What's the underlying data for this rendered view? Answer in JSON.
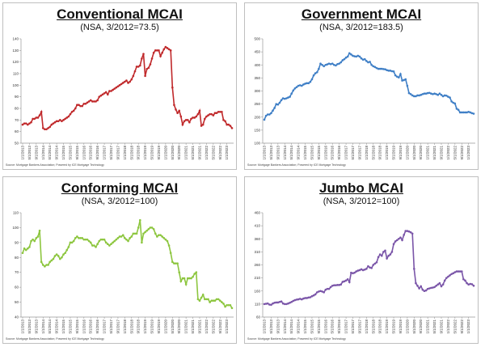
{
  "source": "Source: Mortgage Bankers Association; Powered by ICE Mortgage Technology",
  "x_tick_labels": [
    "1/1/2013",
    "5/1/2013",
    "9/1/2013",
    "1/1/2014",
    "5/1/2014",
    "9/1/2014",
    "1/1/2015",
    "5/1/2015",
    "9/1/2015",
    "1/1/2016",
    "5/1/2016",
    "9/1/2016",
    "1/1/2017",
    "5/1/2017",
    "9/1/2017",
    "1/1/2018",
    "5/1/2018",
    "9/1/2018",
    "1/1/2019",
    "5/1/2019",
    "9/1/2019",
    "1/1/2020",
    "5/1/2020",
    "9/1/2020",
    "1/1/2021",
    "5/1/2021",
    "9/1/2021",
    "1/1/2022",
    "5/1/2022",
    "9/1/2022",
    "1/1/2023"
  ],
  "chart_data": [
    {
      "type": "line",
      "title": "Conventional MCAI",
      "subtitle": "(NSA, 3/2012=73.5)",
      "color": "#c0292b",
      "x_start": "2013-01",
      "x_step": "monthly",
      "ylim": [
        50,
        140
      ],
      "yticks": [
        50,
        60,
        70,
        80,
        90,
        100,
        110,
        120,
        130,
        140
      ],
      "grid": false,
      "legend": "none",
      "values": [
        66,
        67,
        67,
        66,
        67,
        68,
        71,
        71,
        72,
        72,
        74,
        77,
        63,
        62,
        62,
        63,
        64,
        66,
        67,
        68,
        69,
        69,
        70,
        69,
        70,
        71,
        72,
        73,
        75,
        77,
        78,
        80,
        83,
        83,
        82,
        82,
        84,
        84,
        85,
        86,
        87,
        86,
        86,
        86,
        87,
        90,
        91,
        92,
        93,
        94,
        92,
        95,
        95,
        96,
        97,
        98,
        99,
        100,
        101,
        102,
        103,
        104,
        102,
        103,
        105,
        108,
        112,
        116,
        116,
        117,
        123,
        127,
        108,
        114,
        115,
        118,
        123,
        128,
        130,
        130,
        130,
        125,
        128,
        131,
        133,
        132,
        131,
        130,
        98,
        83,
        79,
        76,
        78,
        73,
        66,
        69,
        70,
        70,
        68,
        71,
        72,
        72,
        73,
        75,
        78,
        65,
        66,
        71,
        73,
        74,
        75,
        75,
        74,
        76,
        76,
        77,
        77,
        77,
        70,
        69,
        66,
        66,
        65,
        63
      ]
    },
    {
      "type": "line",
      "title": "Government MCAI",
      "subtitle": "(NSA, 3/2012=183.5)",
      "color": "#3f7fc6",
      "x_start": "2013-01",
      "x_step": "monthly",
      "ylim": [
        100,
        500
      ],
      "yticks": [
        100,
        150,
        200,
        250,
        300,
        350,
        400,
        450,
        500
      ],
      "grid": false,
      "legend": "none",
      "values": [
        190,
        205,
        210,
        210,
        215,
        225,
        235,
        250,
        248,
        255,
        265,
        272,
        270,
        272,
        275,
        278,
        290,
        302,
        310,
        315,
        320,
        322,
        320,
        325,
        328,
        330,
        330,
        335,
        345,
        360,
        368,
        372,
        385,
        405,
        400,
        395,
        400,
        402,
        405,
        403,
        405,
        400,
        398,
        403,
        405,
        410,
        418,
        422,
        428,
        432,
        445,
        440,
        435,
        433,
        432,
        435,
        432,
        425,
        420,
        422,
        415,
        410,
        412,
        400,
        395,
        392,
        388,
        385,
        385,
        385,
        384,
        383,
        380,
        378,
        378,
        376,
        375,
        360,
        355,
        352,
        365,
        340,
        342,
        345,
        320,
        292,
        288,
        283,
        280,
        280,
        283,
        283,
        285,
        288,
        290,
        290,
        292,
        293,
        290,
        288,
        290,
        288,
        285,
        290,
        285,
        280,
        283,
        282,
        278,
        275,
        260,
        255,
        252,
        232,
        228,
        218,
        218,
        218,
        218,
        218,
        220,
        218,
        215,
        213
      ]
    },
    {
      "type": "line",
      "title": "Conforming MCAI",
      "subtitle": "(NSA, 3/2012=100)",
      "color": "#8dc63f",
      "x_start": "2013-01",
      "x_step": "monthly",
      "ylim": [
        40,
        110
      ],
      "yticks": [
        40,
        50,
        60,
        70,
        80,
        90,
        100,
        110
      ],
      "grid": false,
      "legend": "none",
      "values": [
        83,
        86,
        85,
        86,
        87,
        91,
        92,
        91,
        93,
        94,
        98,
        77,
        75,
        74,
        75,
        75,
        77,
        78,
        79,
        81,
        82,
        81,
        79,
        80,
        82,
        83,
        85,
        87,
        90,
        90,
        91,
        93,
        94,
        93,
        93,
        93,
        92,
        92,
        92,
        91,
        90,
        88,
        88,
        87,
        89,
        91,
        92,
        92,
        92,
        90,
        89,
        88,
        89,
        90,
        91,
        92,
        93,
        94,
        94,
        95,
        93,
        92,
        91,
        93,
        94,
        96,
        96,
        96,
        100,
        105,
        90,
        96,
        97,
        98,
        99,
        100,
        100,
        99,
        96,
        94,
        95,
        95,
        94,
        93,
        92,
        91,
        88,
        83,
        77,
        76,
        76,
        76,
        70,
        64,
        66,
        66,
        62,
        66,
        66,
        66,
        67,
        69,
        70,
        52,
        51,
        53,
        55,
        52,
        52,
        52,
        50,
        51,
        51,
        51,
        52,
        52,
        51,
        50,
        49,
        47,
        48,
        48,
        48,
        46
      ]
    },
    {
      "type": "line",
      "title": "Jumbo MCAI",
      "subtitle": "(NSA, 3/2012=100)",
      "color": "#7a55a8",
      "x_start": "2013-01",
      "x_step": "monthly",
      "ylim": [
        60,
        460
      ],
      "yticks": [
        60,
        110,
        160,
        210,
        260,
        310,
        360,
        410,
        460
      ],
      "grid": false,
      "legend": "none",
      "values": [
        110,
        111,
        112,
        108,
        107,
        112,
        115,
        116,
        116,
        118,
        120,
        112,
        110,
        110,
        112,
        115,
        118,
        122,
        125,
        127,
        128,
        130,
        128,
        131,
        133,
        133,
        135,
        136,
        140,
        143,
        147,
        155,
        158,
        160,
        158,
        155,
        165,
        168,
        168,
        175,
        180,
        182,
        182,
        183,
        183,
        185,
        195,
        197,
        200,
        205,
        194,
        230,
        228,
        230,
        235,
        238,
        240,
        243,
        240,
        242,
        245,
        255,
        250,
        248,
        260,
        265,
        270,
        290,
        300,
        295,
        310,
        315,
        285,
        295,
        300,
        310,
        340,
        350,
        355,
        360,
        365,
        355,
        375,
        390,
        390,
        388,
        385,
        380,
        245,
        190,
        180,
        170,
        178,
        165,
        160,
        162,
        168,
        170,
        172,
        173,
        175,
        180,
        185,
        190,
        178,
        185,
        200,
        210,
        215,
        220,
        225,
        228,
        232,
        235,
        235,
        235,
        235,
        205,
        200,
        190,
        185,
        187,
        186,
        180
      ]
    }
  ]
}
